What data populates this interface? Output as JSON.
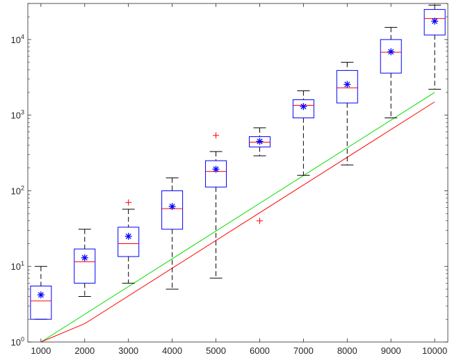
{
  "chart_data": {
    "type": "box",
    "yscale": "log",
    "categories": [
      "1000",
      "2000",
      "3000",
      "4000",
      "5000",
      "6000",
      "7000",
      "8000",
      "9000",
      "10000"
    ],
    "xlim": [
      700,
      10300
    ],
    "ylim": [
      1,
      30000
    ],
    "y_ticks": [
      {
        "value": 1,
        "base": "10",
        "exp": "0"
      },
      {
        "value": 10,
        "base": "10",
        "exp": "1"
      },
      {
        "value": 100,
        "base": "10",
        "exp": "2"
      },
      {
        "value": 1000,
        "base": "10",
        "exp": "3"
      },
      {
        "value": 10000,
        "base": "10",
        "exp": "4"
      }
    ],
    "grid": false,
    "boxes": [
      {
        "x": 1000,
        "whisker_low": 2,
        "q1": 2,
        "median": 3.5,
        "q3": 5.5,
        "whisker_high": 10,
        "mean": 4.2,
        "outliers": []
      },
      {
        "x": 2000,
        "whisker_low": 4,
        "q1": 6,
        "median": 11.5,
        "q3": 17,
        "whisker_high": 31,
        "mean": 13,
        "outliers": []
      },
      {
        "x": 3000,
        "whisker_low": 6,
        "q1": 13.5,
        "median": 20,
        "q3": 33,
        "whisker_high": 57,
        "mean": 25,
        "outliers": [
          70
        ]
      },
      {
        "x": 4000,
        "whisker_low": 5,
        "q1": 31,
        "median": 58,
        "q3": 100,
        "whisker_high": 148,
        "mean": 62,
        "outliers": []
      },
      {
        "x": 5000,
        "whisker_low": 7,
        "q1": 112,
        "median": 180,
        "q3": 250,
        "whisker_high": 330,
        "mean": 193,
        "outliers": [
          540
        ]
      },
      {
        "x": 6000,
        "whisker_low": 290,
        "q1": 380,
        "median": 440,
        "q3": 520,
        "whisker_high": 680,
        "mean": 450,
        "outliers": [
          40
        ]
      },
      {
        "x": 7000,
        "whisker_low": 160,
        "q1": 920,
        "median": 1350,
        "q3": 1600,
        "whisker_high": 2100,
        "mean": 1300,
        "outliers": []
      },
      {
        "x": 8000,
        "whisker_low": 220,
        "q1": 1450,
        "median": 2300,
        "q3": 3900,
        "whisker_high": 5000,
        "mean": 2550,
        "outliers": []
      },
      {
        "x": 9000,
        "whisker_low": 920,
        "q1": 3600,
        "median": 6800,
        "q3": 10000,
        "whisker_high": 14500,
        "mean": 6900,
        "outliers": []
      },
      {
        "x": 10000,
        "whisker_low": 2200,
        "q1": 11500,
        "median": 19000,
        "q3": 25000,
        "whisker_high": 28500,
        "mean": 17500,
        "outliers": []
      }
    ],
    "series": [
      {
        "color": "#00dd00",
        "x": [
          1000,
          10000
        ],
        "y": [
          1,
          2000
        ]
      },
      {
        "color": "#ff0000",
        "x": [
          1000,
          2000,
          10000
        ],
        "y": [
          1,
          1.75,
          1500
        ]
      }
    ],
    "colors": {
      "box": "#0000ff",
      "median": "#ff0000",
      "whisker": "#000000",
      "mean": "#0000ff",
      "outlier": "#ff0000",
      "axis": "#262626"
    }
  }
}
